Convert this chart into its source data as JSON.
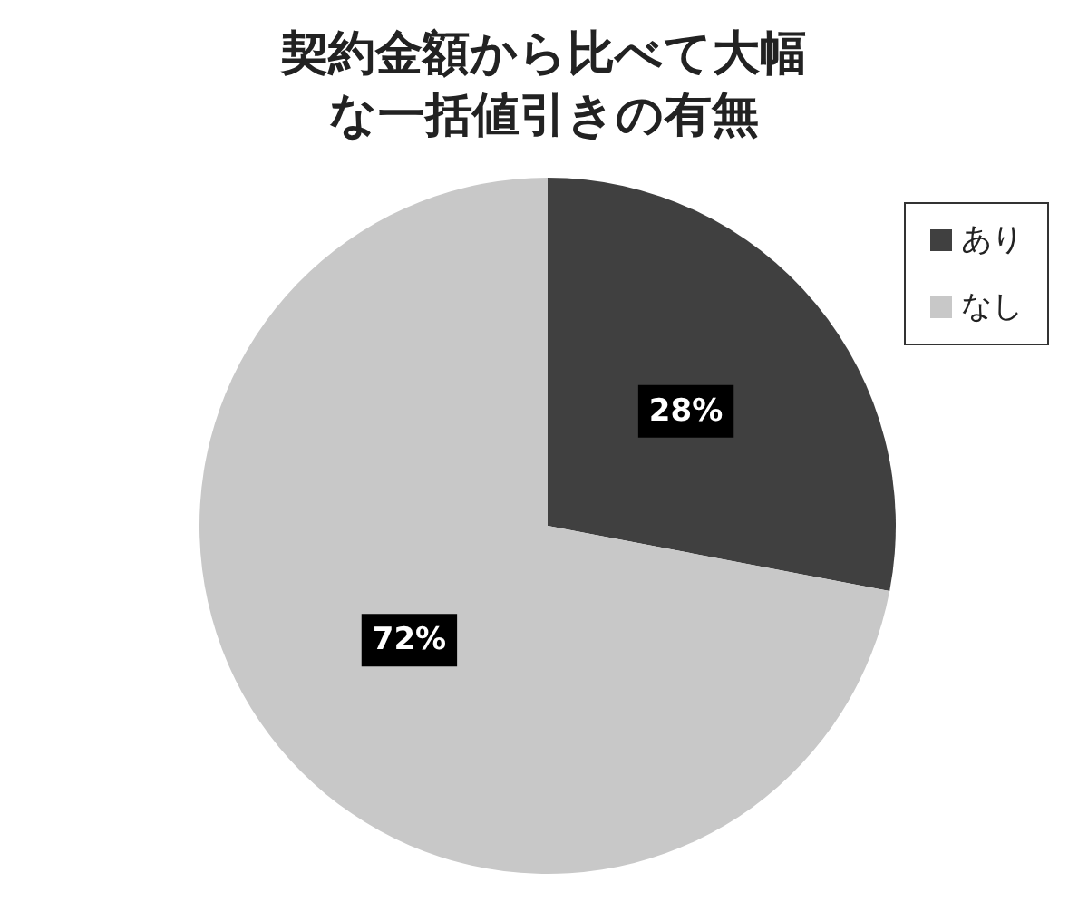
{
  "chart_data": {
    "type": "pie",
    "title": "契約金額から比べて大幅な一括値引きの有無",
    "categories": [
      "あり",
      "なし"
    ],
    "values": [
      28,
      72
    ],
    "colors": [
      "#404040",
      "#c8c8c8"
    ],
    "value_labels": [
      "28%",
      "72%"
    ],
    "legend": "top right"
  }
}
